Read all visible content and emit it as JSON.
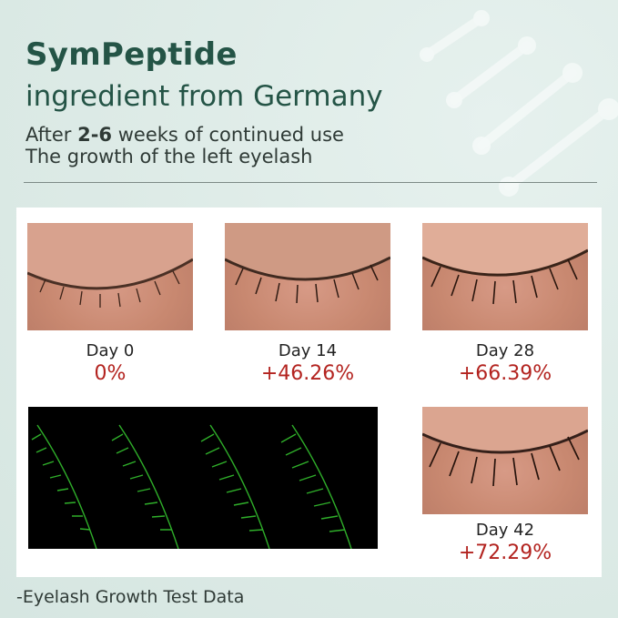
{
  "header": {
    "title": "SymPeptide",
    "subtitle": "ingredient from Germany",
    "line1_prefix": "After ",
    "line1_bold": "2-6",
    "line1_suffix": " weeks of continued use",
    "line2": "The growth of the left eyelash"
  },
  "results": [
    {
      "day": "Day 0",
      "increase": "0%"
    },
    {
      "day": "Day 14",
      "increase": "+46.26%"
    },
    {
      "day": "Day 28",
      "increase": "+66.39%"
    },
    {
      "day": "Day 42",
      "increase": "+72.29%"
    }
  ],
  "footer": "-Eyelash Growth Test Data",
  "colors": {
    "title": "#245446",
    "increase": "#b3231f",
    "lash_scan": "#35c22f"
  }
}
